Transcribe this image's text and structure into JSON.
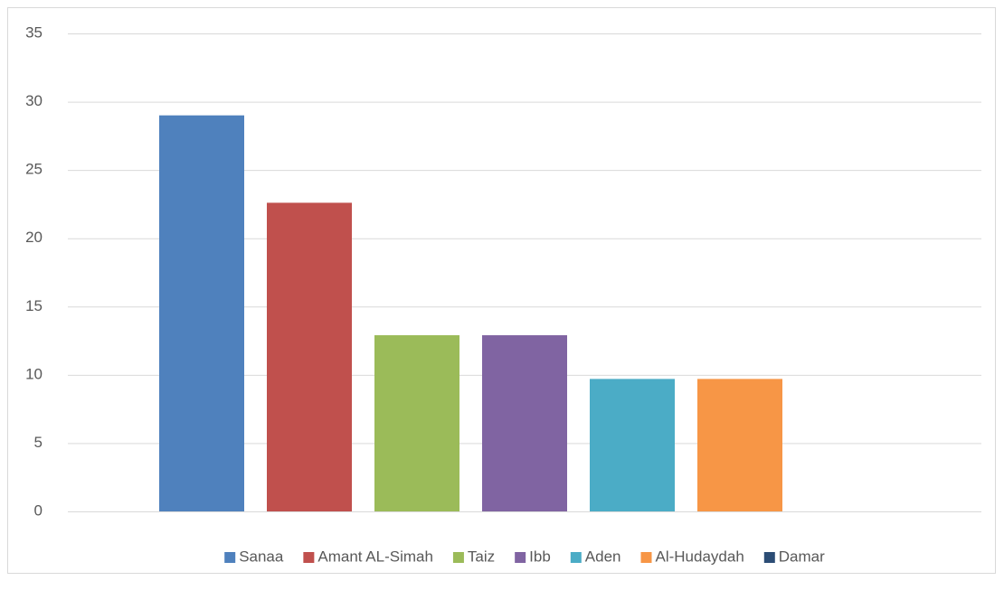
{
  "chart_data": {
    "type": "bar",
    "categories": [
      null
    ],
    "series": [
      {
        "name": "Sanaa",
        "color": "#4f81bd",
        "values": [
          29
        ]
      },
      {
        "name": "Amant AL-Simah",
        "color": "#c0504d",
        "values": [
          22.6
        ]
      },
      {
        "name": "Taiz",
        "color": "#9bbb59",
        "values": [
          12.9
        ]
      },
      {
        "name": "Ibb",
        "color": "#8064a2",
        "values": [
          12.9
        ]
      },
      {
        "name": "Aden",
        "color": "#4bacc6",
        "values": [
          9.7
        ]
      },
      {
        "name": "Al-Hudaydah",
        "color": "#f79646",
        "values": [
          9.7
        ]
      },
      {
        "name": "Damar",
        "color": "#2c4d75",
        "values": [
          0
        ]
      }
    ],
    "ylim": [
      0,
      35
    ],
    "yticks": [
      0,
      5,
      10,
      15,
      20,
      25,
      30,
      35
    ],
    "grid": true,
    "legend": "bottom"
  }
}
